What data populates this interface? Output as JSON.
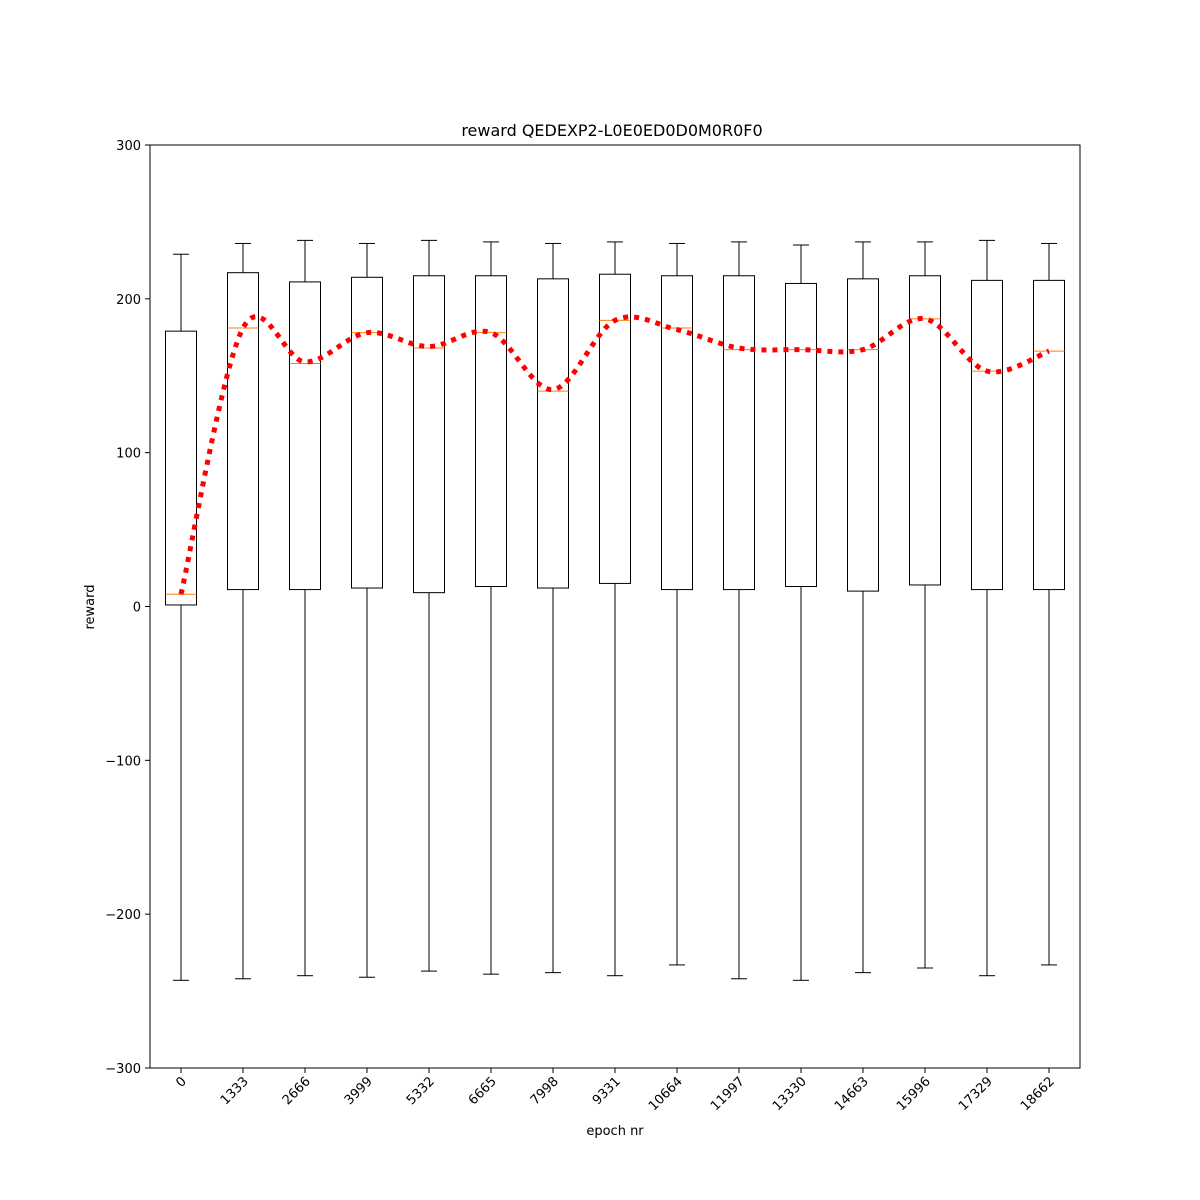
{
  "chart_data": {
    "type": "box",
    "title": "reward QEDEXP2-L0E0ED0D0M0R0F0",
    "xlabel": "epoch nr",
    "ylabel": "reward",
    "ylim": [
      -300,
      300
    ],
    "yticks": [
      -300,
      -200,
      -100,
      0,
      100,
      200,
      300
    ],
    "ytick_labels": [
      "−300",
      "−200",
      "−100",
      "0",
      "100",
      "200",
      "300"
    ],
    "categories": [
      "0",
      "1333",
      "2666",
      "3999",
      "5332",
      "6665",
      "7998",
      "9331",
      "10664",
      "11997",
      "13330",
      "14663",
      "15996",
      "17329",
      "18662"
    ],
    "boxes": [
      {
        "whislo": -243,
        "q1": 1,
        "med": 8,
        "q3": 179,
        "whishi": 229
      },
      {
        "whislo": -242,
        "q1": 11,
        "med": 181,
        "q3": 217,
        "whishi": 236
      },
      {
        "whislo": -240,
        "q1": 11,
        "med": 158,
        "q3": 211,
        "whishi": 238
      },
      {
        "whislo": -241,
        "q1": 12,
        "med": 178,
        "q3": 214,
        "whishi": 236
      },
      {
        "whislo": -237,
        "q1": 9,
        "med": 168,
        "q3": 215,
        "whishi": 238
      },
      {
        "whislo": -239,
        "q1": 13,
        "med": 178,
        "q3": 215,
        "whishi": 237
      },
      {
        "whislo": -238,
        "q1": 12,
        "med": 140,
        "q3": 213,
        "whishi": 236
      },
      {
        "whislo": -240,
        "q1": 15,
        "med": 186,
        "q3": 216,
        "whishi": 237
      },
      {
        "whislo": -233,
        "q1": 11,
        "med": 181,
        "q3": 215,
        "whishi": 236
      },
      {
        "whislo": -242,
        "q1": 11,
        "med": 167,
        "q3": 215,
        "whishi": 237
      },
      {
        "whislo": -243,
        "q1": 13,
        "med": 167,
        "q3": 210,
        "whishi": 235
      },
      {
        "whislo": -238,
        "q1": 10,
        "med": 167,
        "q3": 213,
        "whishi": 237
      },
      {
        "whislo": -235,
        "q1": 14,
        "med": 187,
        "q3": 215,
        "whishi": 237
      },
      {
        "whislo": -240,
        "q1": 11,
        "med": 153,
        "q3": 212,
        "whishi": 238
      },
      {
        "whislo": -233,
        "q1": 11,
        "med": 166,
        "q3": 212,
        "whishi": 236
      }
    ],
    "trend_line": {
      "values": [
        8,
        181,
        159,
        178,
        169,
        178,
        141,
        186,
        180,
        168,
        167,
        167,
        187,
        153,
        166
      ],
      "style": "dotted",
      "color": "#ff0000"
    },
    "colors": {
      "box": "#000000",
      "median": "#ff7f0e",
      "trend": "#ff0000"
    },
    "grid": false
  }
}
